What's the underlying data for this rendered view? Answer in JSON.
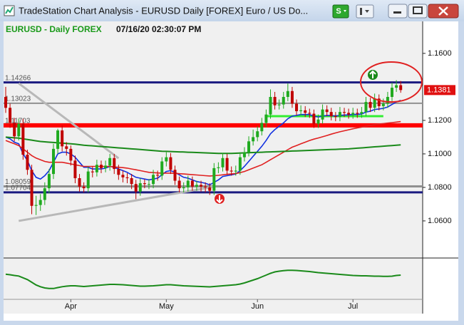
{
  "window": {
    "title": "TradeStation Chart Analysis - EURUSD Daily [FOREX] Euro / US Do...",
    "button_s": "S"
  },
  "header": {
    "symbol": "EURUSD - Daily  FOREX",
    "datetime": "07/16/20  02:30:07 PM"
  },
  "chart_data": {
    "type": "candlestick",
    "ylim": [
      1.0387,
      1.1791
    ],
    "yticks": [
      {
        "value": 1.06,
        "label": "1.0600"
      },
      {
        "value": 1.08,
        "label": "1.0800"
      },
      {
        "value": 1.1,
        "label": "1.1000"
      },
      {
        "value": 1.12,
        "label": "1.1200"
      },
      {
        "value": 1.16,
        "label": "1.1600"
      }
    ],
    "up_color": "#1faa1f",
    "down_color": "#c00000",
    "categories": [
      null,
      null,
      null,
      null,
      null,
      null,
      null,
      null,
      null,
      null,
      null,
      null,
      null,
      null,
      null,
      "Apr",
      null,
      null,
      null,
      null,
      null,
      null,
      null,
      null,
      null,
      null,
      null,
      null,
      null,
      null,
      null,
      null,
      null,
      null,
      null,
      null,
      null,
      "May",
      null,
      null,
      null,
      null,
      null,
      null,
      null,
      null,
      null,
      null,
      null,
      null,
      null,
      null,
      null,
      null,
      null,
      null,
      null,
      null,
      "Jun",
      null,
      null,
      null,
      null,
      null,
      null,
      null,
      null,
      null,
      null,
      null,
      null,
      null,
      null,
      null,
      null,
      null,
      null,
      null,
      null,
      null,
      "Jul",
      null,
      null,
      null,
      null,
      null,
      null,
      null,
      null,
      null,
      null,
      null
    ],
    "ohlc": [
      [
        1.134,
        1.14,
        1.1245,
        1.1275
      ],
      [
        1.1275,
        1.13,
        1.1155,
        1.1185
      ],
      [
        1.1185,
        1.1215,
        1.1075,
        1.1105
      ],
      [
        1.1105,
        1.121,
        1.108,
        1.118
      ],
      [
        1.118,
        1.121,
        1.0965,
        1.0995
      ],
      [
        1.0995,
        1.1025,
        1.0875,
        1.0905
      ],
      [
        1.0905,
        1.0935,
        1.064,
        1.069
      ],
      [
        1.069,
        1.075,
        1.0635,
        1.0695
      ],
      [
        1.0695,
        1.076,
        1.066,
        1.0725
      ],
      [
        1.0725,
        1.083,
        1.0695,
        1.0795
      ],
      [
        1.0795,
        1.091,
        1.0765,
        1.088
      ],
      [
        1.088,
        1.106,
        1.085,
        1.103
      ],
      [
        1.103,
        1.115,
        1.1,
        1.114
      ],
      [
        1.114,
        1.117,
        1.1015,
        1.1045
      ],
      [
        1.1045,
        1.107,
        1.099,
        1.103
      ],
      [
        1.103,
        1.105,
        1.093,
        1.096
      ],
      [
        1.096,
        1.099,
        1.0825,
        1.0855
      ],
      [
        1.0855,
        1.088,
        1.0775,
        1.0805
      ],
      [
        1.0805,
        1.083,
        1.077,
        1.0795
      ],
      [
        1.0795,
        1.0925,
        1.077,
        1.0895
      ],
      [
        1.0895,
        1.0925,
        1.086,
        1.089
      ],
      [
        1.089,
        1.0965,
        1.0865,
        1.0935
      ],
      [
        1.0935,
        1.096,
        1.0885,
        1.0915
      ],
      [
        1.0915,
        1.096,
        1.089,
        1.093
      ],
      [
        1.093,
        1.1,
        1.09,
        1.0975
      ],
      [
        1.0975,
        1.1,
        1.088,
        1.091
      ],
      [
        1.091,
        1.0935,
        1.0845,
        1.0875
      ],
      [
        1.0875,
        1.09,
        1.083,
        1.086
      ],
      [
        1.086,
        1.0885,
        1.0825,
        1.0855
      ],
      [
        1.0855,
        1.088,
        1.079,
        1.082
      ],
      [
        1.082,
        1.0845,
        1.073,
        1.0775
      ],
      [
        1.0775,
        1.0855,
        1.075,
        1.0825
      ],
      [
        1.0825,
        1.085,
        1.0795,
        1.082
      ],
      [
        1.082,
        1.085,
        1.079,
        1.082
      ],
      [
        1.082,
        1.0905,
        1.0795,
        1.0875
      ],
      [
        1.0875,
        1.09,
        1.084,
        1.087
      ],
      [
        1.087,
        1.098,
        1.0845,
        1.0955
      ],
      [
        1.0955,
        1.101,
        1.0925,
        1.098
      ],
      [
        1.098,
        1.1005,
        1.088,
        1.0905
      ],
      [
        1.0905,
        1.093,
        1.0815,
        1.084
      ],
      [
        1.084,
        1.0865,
        1.077,
        1.0795
      ],
      [
        1.0795,
        1.083,
        1.077,
        1.08
      ],
      [
        1.08,
        1.087,
        1.0775,
        1.084
      ],
      [
        1.084,
        1.0865,
        1.078,
        1.0805
      ],
      [
        1.0805,
        1.084,
        1.078,
        1.0815
      ],
      [
        1.0815,
        1.084,
        1.0775,
        1.0805
      ],
      [
        1.0805,
        1.083,
        1.077,
        1.08
      ],
      [
        1.08,
        1.0825,
        1.0755,
        1.078
      ],
      [
        1.078,
        1.0945,
        1.0755,
        1.0915
      ],
      [
        1.0915,
        1.095,
        1.0885,
        1.092
      ],
      [
        1.092,
        1.1005,
        1.0895,
        1.0975
      ],
      [
        1.0975,
        1.1,
        1.0875,
        1.09
      ],
      [
        1.09,
        1.0925,
        1.087,
        1.0895
      ],
      [
        1.0895,
        1.093,
        1.087,
        1.09
      ],
      [
        1.09,
        1.101,
        1.0875,
        1.098
      ],
      [
        1.098,
        1.104,
        1.0955,
        1.101
      ],
      [
        1.101,
        1.1105,
        1.0985,
        1.1075
      ],
      [
        1.1075,
        1.1145,
        1.105,
        1.11
      ],
      [
        1.11,
        1.1165,
        1.1075,
        1.1135
      ],
      [
        1.1135,
        1.1215,
        1.111,
        1.1185
      ],
      [
        1.1185,
        1.1265,
        1.116,
        1.1235
      ],
      [
        1.1235,
        1.1385,
        1.121,
        1.134
      ],
      [
        1.134,
        1.137,
        1.1265,
        1.129
      ],
      [
        1.129,
        1.1325,
        1.1265,
        1.1295
      ],
      [
        1.1295,
        1.137,
        1.127,
        1.134
      ],
      [
        1.134,
        1.142,
        1.1315,
        1.1375
      ],
      [
        1.1375,
        1.14,
        1.1275,
        1.13
      ],
      [
        1.13,
        1.1325,
        1.123,
        1.1255
      ],
      [
        1.1255,
        1.129,
        1.123,
        1.126
      ],
      [
        1.126,
        1.1285,
        1.122,
        1.1245
      ],
      [
        1.1245,
        1.127,
        1.1215,
        1.124
      ],
      [
        1.124,
        1.1265,
        1.1155,
        1.118
      ],
      [
        1.118,
        1.1235,
        1.1155,
        1.1205
      ],
      [
        1.1205,
        1.1295,
        1.118,
        1.1265
      ],
      [
        1.1265,
        1.129,
        1.1225,
        1.125
      ],
      [
        1.125,
        1.1275,
        1.12,
        1.1225
      ],
      [
        1.1225,
        1.125,
        1.1195,
        1.122
      ],
      [
        1.122,
        1.128,
        1.1195,
        1.125
      ],
      [
        1.125,
        1.1275,
        1.122,
        1.1245
      ],
      [
        1.1245,
        1.127,
        1.121,
        1.1235
      ],
      [
        1.1235,
        1.1275,
        1.121,
        1.1245
      ],
      [
        1.1245,
        1.127,
        1.1215,
        1.124
      ],
      [
        1.124,
        1.128,
        1.1215,
        1.125
      ],
      [
        1.125,
        1.134,
        1.1225,
        1.131
      ],
      [
        1.131,
        1.1335,
        1.125,
        1.1275
      ],
      [
        1.1275,
        1.136,
        1.125,
        1.133
      ],
      [
        1.133,
        1.1355,
        1.126,
        1.1285
      ],
      [
        1.1285,
        1.133,
        1.126,
        1.13
      ],
      [
        1.13,
        1.137,
        1.1275,
        1.134
      ],
      [
        1.134,
        1.1425,
        1.1315,
        1.1395
      ],
      [
        1.1395,
        1.144,
        1.137,
        1.141
      ],
      [
        1.141,
        1.1435,
        1.1365,
        1.1381
      ]
    ],
    "lines": [
      {
        "color": "#1030e0",
        "values": [
          1.11,
          1.109,
          1.107,
          1.106,
          1.1,
          1.096,
          1.09,
          1.086,
          1.085,
          1.087,
          1.09,
          1.095,
          1.1,
          1.101,
          1.101,
          1.1,
          1.098,
          1.095,
          1.092,
          1.092,
          1.091,
          1.091,
          1.091,
          1.0915,
          1.0925,
          1.092,
          1.091,
          1.09,
          1.089,
          1.0875,
          1.086,
          1.0855,
          1.085,
          1.0845,
          1.085,
          1.0855,
          1.0875,
          1.0895,
          1.09,
          1.089,
          1.0875,
          1.086,
          1.0855,
          1.0845,
          1.0835,
          1.083,
          1.0825,
          1.0815,
          1.083,
          1.0845,
          1.0865,
          1.087,
          1.0875,
          1.088,
          1.09,
          1.0925,
          1.0955,
          1.0985,
          1.1015,
          1.1045,
          1.108,
          1.112,
          1.1145,
          1.1165,
          1.1185,
          1.121,
          1.1225,
          1.123,
          1.1235,
          1.1235,
          1.1235,
          1.1225,
          1.122,
          1.1225,
          1.123,
          1.1228,
          1.1226,
          1.123,
          1.1232,
          1.1233,
          1.1235,
          1.1236,
          1.1238,
          1.125,
          1.1255,
          1.1265,
          1.1268,
          1.1272,
          1.128,
          1.1295,
          1.131,
          1.132
        ]
      },
      {
        "color": "#e02020",
        "values": [
          1.108,
          1.107,
          1.106,
          1.105,
          1.103,
          1.101,
          1.099,
          1.0975,
          1.0965,
          1.0955,
          1.095,
          1.095,
          1.095,
          1.095,
          1.0945,
          1.094,
          1.0935,
          1.093,
          1.0925,
          1.0925,
          1.0925,
          1.0925,
          1.0925,
          1.0925,
          1.0925,
          1.0922,
          1.092,
          1.0918,
          1.0915,
          1.091,
          1.0905,
          1.09,
          1.0895,
          1.089,
          1.0888,
          1.0886,
          1.0885,
          1.0885,
          1.0885,
          1.0884,
          1.0882,
          1.088,
          1.0878,
          1.0876,
          1.0874,
          1.0872,
          1.087,
          1.0868,
          1.087,
          1.0872,
          1.0875,
          1.0878,
          1.088,
          1.0883,
          1.0888,
          1.0895,
          1.0905,
          1.0915,
          1.0925,
          1.0935,
          1.095,
          1.0965,
          1.098,
          1.0995,
          1.101,
          1.1025,
          1.104,
          1.105,
          1.106,
          1.107,
          1.108,
          1.1088,
          1.1095,
          1.1102,
          1.111,
          1.1118,
          1.1125,
          1.1132,
          1.1138,
          1.1144,
          1.115,
          1.1155,
          1.116,
          1.1165,
          1.117,
          1.1175,
          1.1178,
          1.1181,
          1.1184,
          1.1187,
          1.119,
          1.1193
        ]
      },
      {
        "color": "#1a8a1a",
        "values": [
          1.11,
          1.1098,
          1.1096,
          1.1094,
          1.109,
          1.1086,
          1.1082,
          1.1078,
          1.1074,
          1.1072,
          1.107,
          1.1068,
          1.1066,
          1.1064,
          1.1062,
          1.106,
          1.1058,
          1.1055,
          1.1052,
          1.105,
          1.1048,
          1.1046,
          1.1044,
          1.1042,
          1.104,
          1.1038,
          1.1036,
          1.1034,
          1.1032,
          1.103,
          1.1028,
          1.1026,
          1.1024,
          1.1022,
          1.102,
          1.1018,
          1.1016,
          1.1015,
          1.1014,
          1.1013,
          1.1012,
          1.1011,
          1.101,
          1.1009,
          1.1008,
          1.1007,
          1.1006,
          1.1005,
          1.1004,
          1.1003,
          1.1003,
          1.1003,
          1.1003,
          1.1004,
          1.1005,
          1.1006,
          1.1007,
          1.1008,
          1.1009,
          1.101,
          1.1011,
          1.1012,
          1.1013,
          1.1014,
          1.1015,
          1.1016,
          1.1017,
          1.1018,
          1.1019,
          1.102,
          1.1021,
          1.1022,
          1.1023,
          1.1024,
          1.1025,
          1.1026,
          1.1027,
          1.1028,
          1.1029,
          1.103,
          1.1032,
          1.1034,
          1.1036,
          1.1038,
          1.104,
          1.1042,
          1.1044,
          1.1046,
          1.1048,
          1.105,
          1.1052,
          1.1054
        ]
      }
    ],
    "levels": [
      {
        "value": 1.14266,
        "color": "#1a1a80",
        "width": 3
      },
      {
        "value": 1.13023,
        "color": "#909090",
        "width": 2
      },
      {
        "value": 1.11703,
        "color": "#ff0000",
        "width": 6
      },
      {
        "value": 1.08059,
        "color": "#909090",
        "width": 3
      },
      {
        "value": 1.07704,
        "color": "#1a1a80",
        "width": 3
      }
    ],
    "trendlines": [
      {
        "x": [
          3,
          26
        ],
        "y": [
          1.1421,
          1.0974
        ],
        "color": "#b8b8b8"
      },
      {
        "x": [
          3,
          48
        ],
        "y": [
          1.06,
          1.0804
        ],
        "color": "#b8b8b8"
      },
      {
        "x": [
          60,
          87
        ],
        "y": [
          1.1225,
          1.1225
        ],
        "color": "#33ee33"
      }
    ],
    "oscillator": {
      "color": "#1a8a1a",
      "ylim": [
        -1,
        1
      ],
      "values": [
        0.25,
        0.22,
        0.18,
        0.15,
        0.05,
        -0.05,
        -0.2,
        -0.35,
        -0.45,
        -0.52,
        -0.55,
        -0.55,
        -0.5,
        -0.45,
        -0.42,
        -0.4,
        -0.4,
        -0.42,
        -0.44,
        -0.42,
        -0.4,
        -0.38,
        -0.36,
        -0.34,
        -0.32,
        -0.32,
        -0.33,
        -0.34,
        -0.36,
        -0.38,
        -0.4,
        -0.42,
        -0.42,
        -0.41,
        -0.4,
        -0.38,
        -0.36,
        -0.34,
        -0.34,
        -0.36,
        -0.38,
        -0.4,
        -0.41,
        -0.42,
        -0.43,
        -0.44,
        -0.45,
        -0.46,
        -0.44,
        -0.42,
        -0.4,
        -0.38,
        -0.36,
        -0.34,
        -0.3,
        -0.24,
        -0.16,
        -0.08,
        0,
        0.1,
        0.2,
        0.3,
        0.38,
        0.42,
        0.45,
        0.47,
        0.47,
        0.46,
        0.44,
        0.42,
        0.4,
        0.37,
        0.34,
        0.32,
        0.3,
        0.28,
        0.26,
        0.24,
        0.22,
        0.2,
        0.18,
        0.17,
        0.16,
        0.16,
        0.15,
        0.14,
        0.14,
        0.13,
        0.13,
        0.14,
        0.18,
        0.2
      ]
    }
  }
}
